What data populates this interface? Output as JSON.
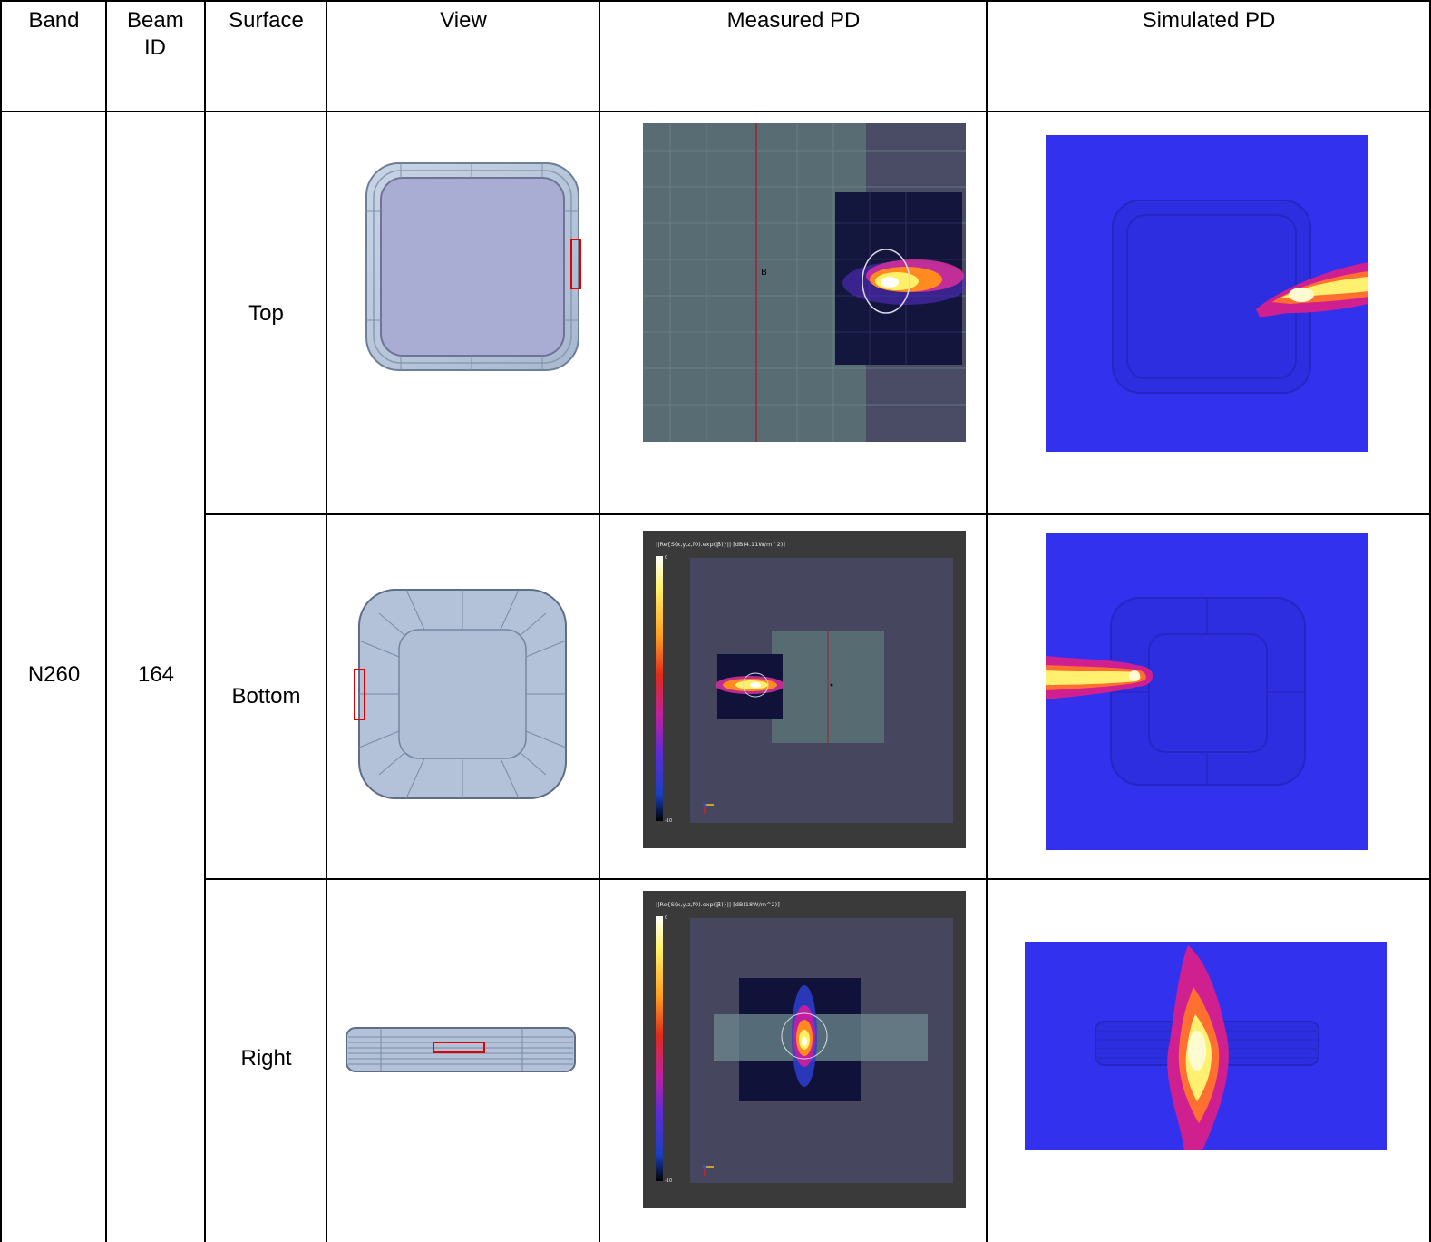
{
  "headers": {
    "band": "Band",
    "beam_id": "Beam ID",
    "surface": "Surface",
    "view": "View",
    "measured_pd": "Measured PD",
    "simulated_pd": "Simulated PD"
  },
  "row": {
    "band": "N260",
    "beam_id": "164"
  },
  "surfaces": [
    "Top",
    "Bottom",
    "Right"
  ],
  "measured": {
    "top": {
      "marker": "B"
    },
    "bottom": {
      "colorbar_title": "||Re{S(x,y,z,f0).exp(jβ)}|| [dB(4.11W/m^2)]",
      "scale_max": "0",
      "scale_min": "-10"
    },
    "right": {
      "colorbar_title": "||Re{S(x,y,z,f0).exp(jβ)}|| [dB(18W/m^2)]",
      "scale_max": "0",
      "scale_min": "-10"
    }
  },
  "colors": {
    "border": "#000000",
    "device_fill": "#b0bfd6",
    "device_screen": "#a9acd3",
    "highlight": "#e00000",
    "measure_bg": "#3a3a3a",
    "measure_panel": "#46465f",
    "sim_bg": "#3131ee"
  }
}
